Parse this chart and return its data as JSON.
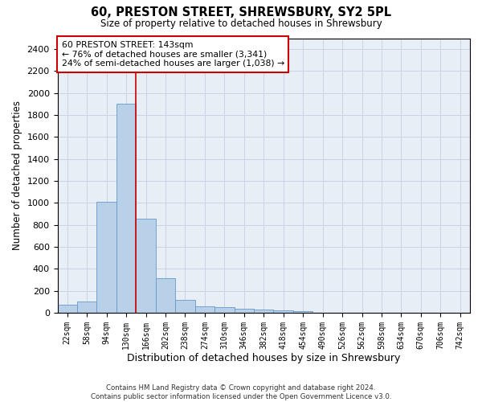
{
  "title1": "60, PRESTON STREET, SHREWSBURY, SY2 5PL",
  "title2": "Size of property relative to detached houses in Shrewsbury",
  "xlabel": "Distribution of detached houses by size in Shrewsbury",
  "ylabel": "Number of detached properties",
  "bin_labels": [
    "22sqm",
    "58sqm",
    "94sqm",
    "130sqm",
    "166sqm",
    "202sqm",
    "238sqm",
    "274sqm",
    "310sqm",
    "346sqm",
    "382sqm",
    "418sqm",
    "454sqm",
    "490sqm",
    "526sqm",
    "562sqm",
    "598sqm",
    "634sqm",
    "670sqm",
    "706sqm",
    "742sqm"
  ],
  "bar_heights": [
    75,
    100,
    1010,
    1900,
    860,
    315,
    120,
    55,
    48,
    40,
    28,
    22,
    18,
    0,
    0,
    0,
    0,
    0,
    0,
    0,
    0
  ],
  "bar_color": "#b8d0e8",
  "bar_edgecolor": "#6699cc",
  "annotation_text": "60 PRESTON STREET: 143sqm\n← 76% of detached houses are smaller (3,341)\n24% of semi-detached houses are larger (1,038) →",
  "annotation_box_color": "#ffffff",
  "annotation_box_edgecolor": "#cc0000",
  "vline_color": "#cc0000",
  "vline_x": 3.5,
  "ylim": [
    0,
    2500
  ],
  "yticks": [
    0,
    200,
    400,
    600,
    800,
    1000,
    1200,
    1400,
    1600,
    1800,
    2000,
    2200,
    2400
  ],
  "footer": "Contains HM Land Registry data © Crown copyright and database right 2024.\nContains public sector information licensed under the Open Government Licence v3.0.",
  "grid_color": "#c8d4e4",
  "bg_color": "#e8eef6"
}
